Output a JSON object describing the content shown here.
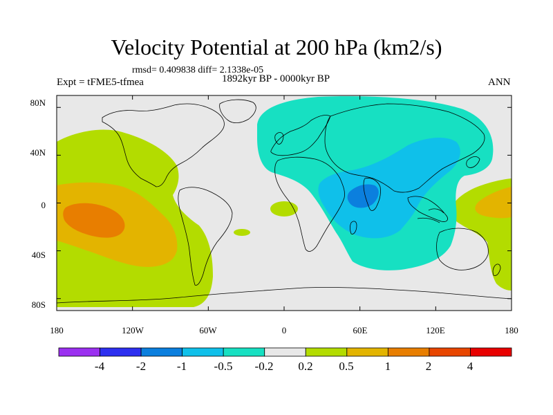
{
  "title": "Velocity Potential at 200 hPa (km2/s)",
  "stats": "rmsd= 0.409838 diff= 2.1338e-05",
  "period": "1892kyr BP - 0000kyr BP",
  "experiment": "Expt = tFME5-tfmea",
  "season": "ANN",
  "map": {
    "lon_ticks": [
      "180",
      "120W",
      "60W",
      "0",
      "60E",
      "120E",
      "180"
    ],
    "lat_ticks": [
      "80N",
      "40N",
      "0",
      "40S",
      "80S"
    ],
    "lon_range": [
      -180,
      180
    ],
    "lat_range": [
      -90,
      90
    ]
  },
  "colorbar": {
    "labels": [
      "-4",
      "-2",
      "-1",
      "-0.5",
      "-0.2",
      "0.2",
      "0.5",
      "1",
      "2",
      "4"
    ],
    "colors": [
      "#9b30f0",
      "#2d2ff0",
      "#0b7fde",
      "#0fc0ea",
      "#17e0c2",
      "#e8e8e8",
      "#b3dc00",
      "#e3b400",
      "#e87e00",
      "#e84600",
      "#e80000"
    ]
  },
  "contours": {
    "c_pos1": "#b3dc00",
    "c_pos2": "#e3b400",
    "c_pos3": "#e87e00",
    "c_neg1": "#17e0c2",
    "c_neg2": "#0fc0ea",
    "c_neg3": "#0b7fde",
    "background": "#e8e8e8",
    "coast": "#000000"
  }
}
